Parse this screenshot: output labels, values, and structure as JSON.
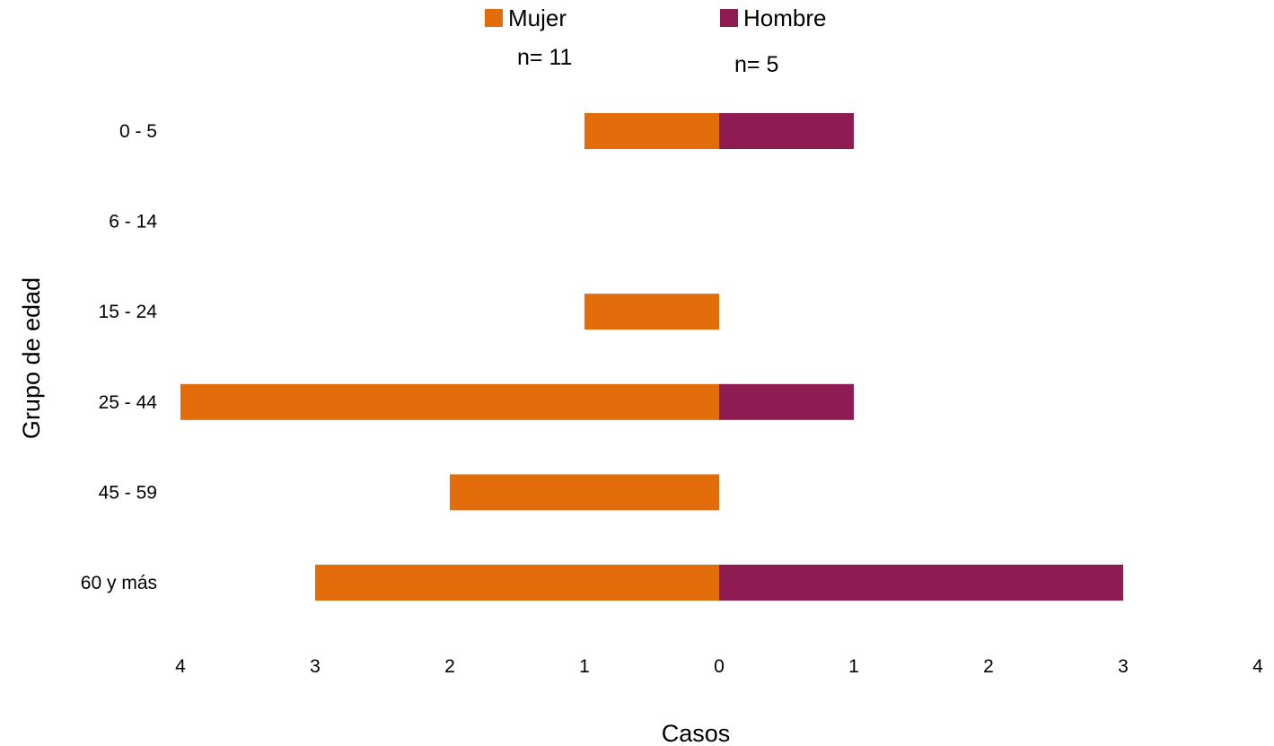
{
  "chart_data": {
    "type": "bar",
    "orientation": "horizontal",
    "layout": "population-pyramid",
    "categories": [
      "0 - 5",
      "6 - 14",
      "15 - 24",
      "25 - 44",
      "45 - 59",
      "60 y más"
    ],
    "series": [
      {
        "name": "Mujer",
        "side": "left",
        "color": "#E36C0A",
        "total_label": "n= 11",
        "values": [
          1,
          0,
          1,
          4,
          2,
          3
        ]
      },
      {
        "name": "Hombre",
        "side": "right",
        "color": "#8E1B52",
        "total_label": "n= 5",
        "values": [
          1,
          0,
          0,
          1,
          0,
          3
        ]
      }
    ],
    "xlabel": "Casos",
    "ylabel": "Grupo de edad",
    "x_ticks": [
      4,
      3,
      2,
      1,
      0,
      1,
      2,
      3,
      4
    ],
    "xlim": [
      -4,
      4
    ],
    "grid": false,
    "legend_position": "top-center"
  }
}
